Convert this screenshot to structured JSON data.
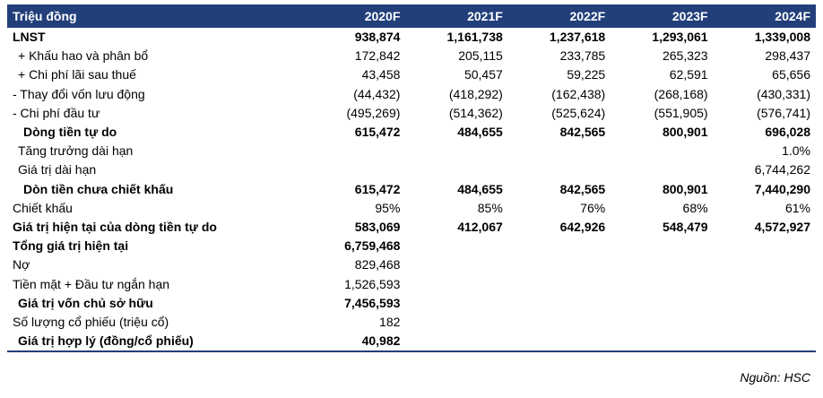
{
  "table": {
    "header": [
      "Triệu đồng",
      "2020F",
      "2021F",
      "2022F",
      "2023F",
      "2024F"
    ],
    "rows": [
      {
        "label": "LNST",
        "values": [
          "938,874",
          "1,161,738",
          "1,237,618",
          "1,293,061",
          "1,339,008"
        ],
        "bold": true
      },
      {
        "label": "+ Khấu hao và phân bổ",
        "values": [
          "172,842",
          "205,115",
          "233,785",
          "265,323",
          "298,437"
        ],
        "bold": false
      },
      {
        "label": "+ Chi phí lãi sau thuế",
        "values": [
          "43,458",
          "50,457",
          "59,225",
          "62,591",
          "65,656"
        ],
        "bold": false
      },
      {
        "label": "- Thay đổi vốn lưu động",
        "values": [
          "(44,432)",
          "(418,292)",
          "(162,438)",
          "(268,168)",
          "(430,331)"
        ],
        "bold": false
      },
      {
        "label": "- Chi phí đầu tư",
        "values": [
          "(495,269)",
          "(514,362)",
          "(525,624)",
          "(551,905)",
          "(576,741)"
        ],
        "bold": false
      },
      {
        "label": "Dòng tiền tự do",
        "values": [
          "615,472",
          "484,655",
          "842,565",
          "800,901",
          "696,028"
        ],
        "bold": true
      },
      {
        "label": "Tăng trưởng dài hạn",
        "values": [
          "",
          "",
          "",
          "",
          "1.0%"
        ],
        "bold": false
      },
      {
        "label": "Giá trị dài hạn",
        "values": [
          "",
          "",
          "",
          "",
          "6,744,262"
        ],
        "bold": false
      },
      {
        "label": "Dòn tiền chưa chiết  khấu",
        "values": [
          "615,472",
          "484,655",
          "842,565",
          "800,901",
          "7,440,290"
        ],
        "bold": true
      },
      {
        "label": "Chiết khấu",
        "values": [
          "95%",
          "85%",
          "76%",
          "68%",
          "61%"
        ],
        "bold": false
      },
      {
        "label": "Giá trị hiện tại của dòng tiền tự do",
        "values": [
          "583,069",
          "412,067",
          "642,926",
          "548,479",
          "4,572,927"
        ],
        "bold": true
      },
      {
        "label": "Tổng giá trị hiện tại",
        "values": [
          "6,759,468",
          "",
          "",
          "",
          ""
        ],
        "bold": true
      },
      {
        "label": "Nợ",
        "values": [
          "829,468",
          "",
          "",
          "",
          ""
        ],
        "bold": false
      },
      {
        "label": "Tiền mặt + Đầu tư ngắn hạn",
        "values": [
          "1,526,593",
          "",
          "",
          "",
          ""
        ],
        "bold": false
      },
      {
        "label": "Giá trị vốn chủ sở hữu",
        "values": [
          "7,456,593",
          "",
          "",
          "",
          ""
        ],
        "bold": true
      },
      {
        "label": "Số lượng cổ phiếu (triệu cổ)",
        "values": [
          "182",
          "",
          "",
          "",
          ""
        ],
        "bold": false
      },
      {
        "label": "Giá trị hợp lý (đồng/cổ phiếu)",
        "values": [
          "40,982",
          "",
          "",
          "",
          ""
        ],
        "bold": true
      }
    ]
  },
  "source": "Nguồn: HSC"
}
